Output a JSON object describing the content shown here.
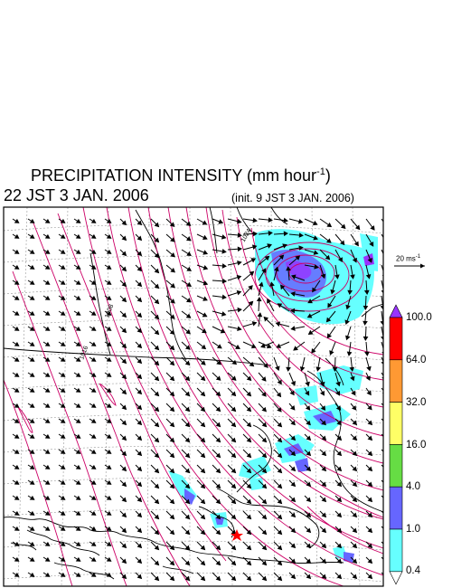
{
  "header": {
    "title": "PRECIPITATION INTENSITY (mm hour",
    "title_unit_exponent": "-1",
    "title_close": ")",
    "valid_time": "22 JST 3 JAN. 2006",
    "init_time": "(init. 9 JST 3 JAN. 2006)"
  },
  "map": {
    "isobar_labels": [
      "1008",
      "1016",
      "1024"
    ],
    "isobar_color": "#cc0066",
    "marker": {
      "symbol": "star",
      "color": "#ff0000"
    }
  },
  "wind_scale": {
    "label": "20 ms",
    "exponent": "-1"
  },
  "colorbar": {
    "levels": [
      "100.0",
      "64.0",
      "32.0",
      "16.0",
      "4.0",
      "1.0",
      "0.4"
    ],
    "colors": [
      "#9933ff",
      "#ff0000",
      "#ff9933",
      "#ffff66",
      "#66dd44",
      "#6666ff",
      "#66ffff"
    ]
  }
}
